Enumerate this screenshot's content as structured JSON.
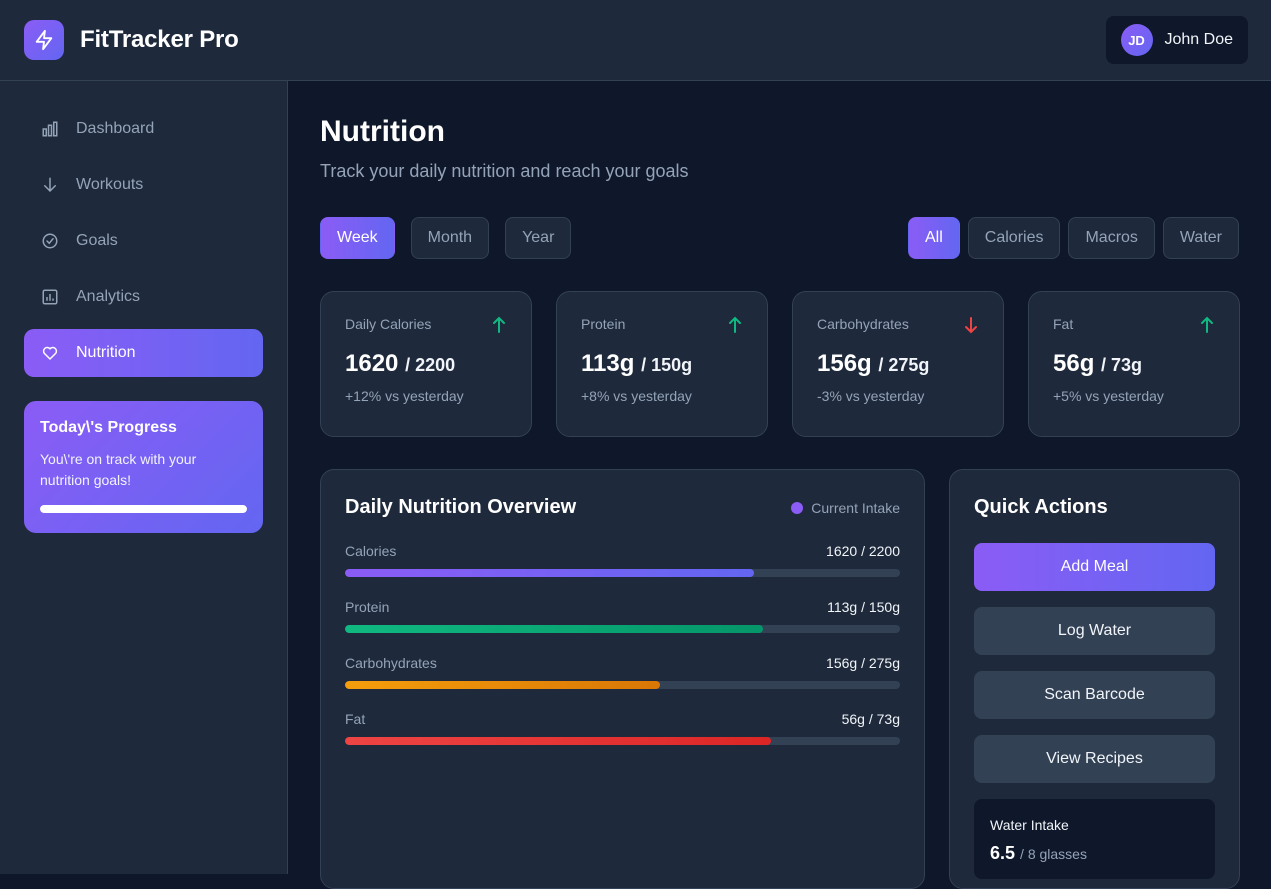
{
  "app": {
    "name": "FitTracker Pro"
  },
  "user": {
    "initials": "JD",
    "name": "John Doe"
  },
  "sidebar": {
    "items": [
      {
        "label": "Dashboard",
        "icon": "bar-chart-icon"
      },
      {
        "label": "Workouts",
        "icon": "arrow-down-icon"
      },
      {
        "label": "Goals",
        "icon": "check-circle-icon"
      },
      {
        "label": "Analytics",
        "icon": "analytics-icon"
      },
      {
        "label": "Nutrition",
        "icon": "heart-icon",
        "active": true
      }
    ],
    "progress": {
      "title": "Today\\'s Progress",
      "text": "You\\'re on track with your nutrition goals!",
      "percent": 100
    }
  },
  "page": {
    "title": "Nutrition",
    "subtitle": "Track your daily nutrition and reach your goals"
  },
  "period_filters": {
    "items": [
      "Week",
      "Month",
      "Year"
    ],
    "selected": "Week"
  },
  "type_filters": {
    "items": [
      "All",
      "Calories",
      "Macros",
      "Water"
    ],
    "selected": "All"
  },
  "stats": [
    {
      "label": "Daily Calories",
      "value": "1620",
      "target": "/ 2200",
      "change": "+12% vs yesterday",
      "trend": "up"
    },
    {
      "label": "Protein",
      "value": "113g",
      "target": "/ 150g",
      "change": "+8% vs yesterday",
      "trend": "up"
    },
    {
      "label": "Carbohydrates",
      "value": "156g",
      "target": "/ 275g",
      "change": "-3% vs yesterday",
      "trend": "down"
    },
    {
      "label": "Fat",
      "value": "56g",
      "target": "/ 73g",
      "change": "+5% vs yesterday",
      "trend": "up"
    }
  ],
  "overview": {
    "title": "Daily Nutrition Overview",
    "legend": "Current Intake",
    "bars": [
      {
        "name": "Calories",
        "value": "1620 / 2200",
        "fraction": 0.7364,
        "color": "#8b5cf6",
        "color2": "#6366f1"
      },
      {
        "name": "Protein",
        "value": "113g / 150g",
        "fraction": 0.7533,
        "color": "#10b981",
        "color2": "#059669"
      },
      {
        "name": "Carbohydrates",
        "value": "156g / 275g",
        "fraction": 0.5673,
        "color": "#f59e0b",
        "color2": "#d97706"
      },
      {
        "name": "Fat",
        "value": "56g / 73g",
        "fraction": 0.7671,
        "color": "#ef4444",
        "color2": "#dc2626"
      }
    ]
  },
  "quick_actions": {
    "title": "Quick Actions",
    "buttons": [
      "Add Meal",
      "Log Water",
      "Scan Barcode",
      "View Recipes"
    ],
    "water": {
      "label": "Water Intake",
      "value": "6.5",
      "unit": "/ 8 glasses"
    }
  },
  "colors": {
    "accent": "#8b5cf6",
    "accent2": "#6366f1",
    "up": "#10b981",
    "down": "#ef4444"
  }
}
